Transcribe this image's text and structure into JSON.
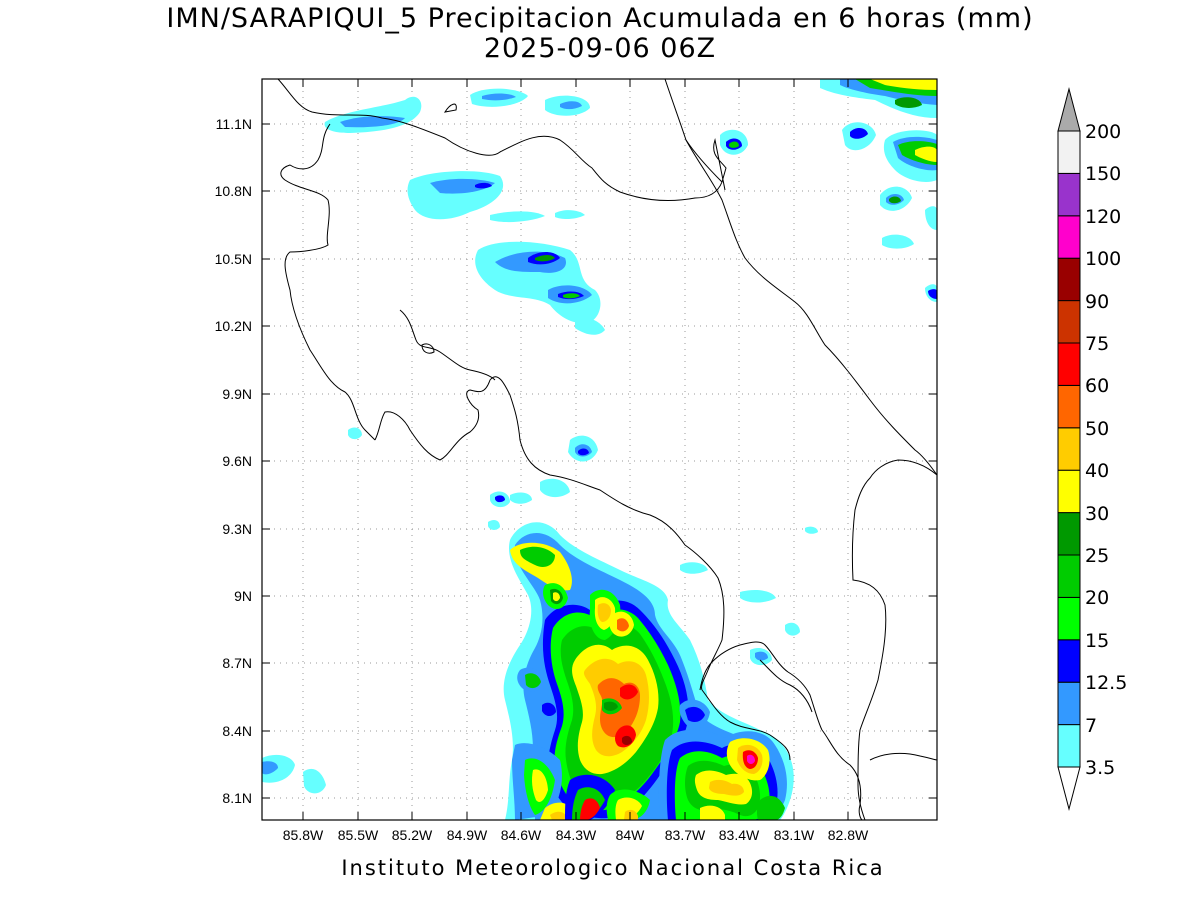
{
  "title_line1": "IMN/SARAPIQUI_5 Precipitacion Acumulada en 6 horas (mm)",
  "title_line2": "2025-09-06 06Z",
  "footer": "Instituto Meteorologico Nacional Costa Rica",
  "map": {
    "lon_labels": [
      "85.8W",
      "85.5W",
      "85.2W",
      "84.9W",
      "84.6W",
      "84.3W",
      "84W",
      "83.7W",
      "83.4W",
      "83.1W",
      "82.8W"
    ],
    "lat_labels": [
      "11.1N",
      "10.8N",
      "10.5N",
      "10.2N",
      "9.9N",
      "9.6N",
      "9.3N",
      "9N",
      "8.7N",
      "8.4N",
      "8.1N"
    ]
  },
  "colorbar": {
    "labels": [
      "3.5",
      "7",
      "12.5",
      "15",
      "20",
      "25",
      "30",
      "40",
      "50",
      "60",
      "75",
      "90",
      "100",
      "120",
      "150",
      "200"
    ],
    "colors": [
      "#66ffff",
      "#3399ff",
      "#0000ff",
      "#00ff00",
      "#00cc00",
      "#009900",
      "#ffff00",
      "#ffcc00",
      "#ff6600",
      "#ff0000",
      "#cc3300",
      "#990000",
      "#ff00cc",
      "#9933cc",
      "#f2f2f2"
    ],
    "top_arrow_color": "#aaaaaa",
    "bottom_arrow_color": "#ffffff"
  }
}
